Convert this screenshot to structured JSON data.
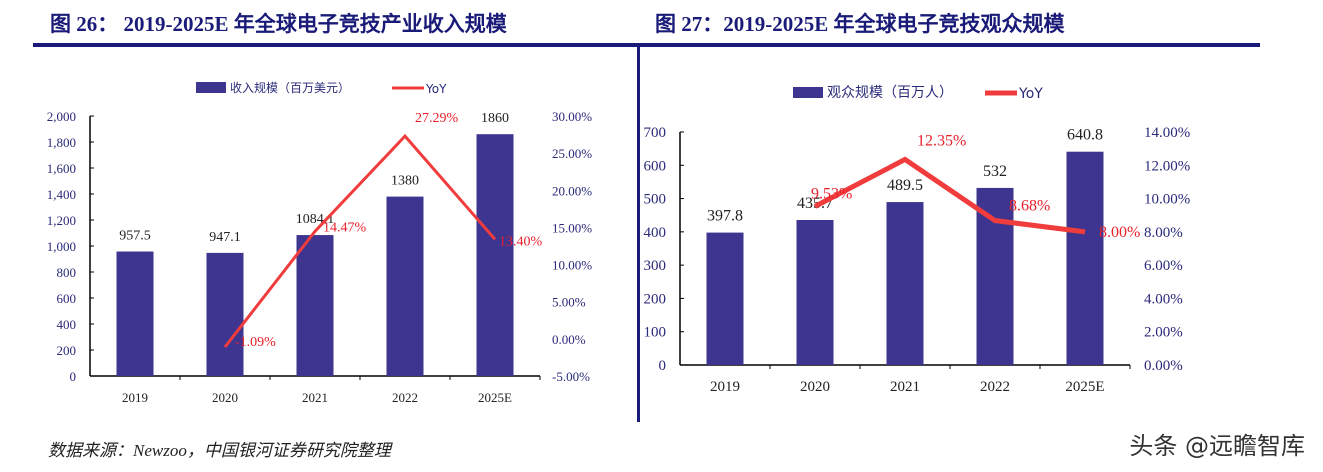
{
  "figures": [
    {
      "title": "图 26：  2019-2025E 年全球电子竞技产业收入规模"
    },
    {
      "title": "图 27：2019-2025E 年全球电子竞技观众规模"
    }
  ],
  "source": "数据来源：Newzoo，中国银河证券研究院整理",
  "watermark": "头条 @远瞻智库",
  "colors": {
    "bar": "#3e3590",
    "line": "#f03c3c",
    "axis_text": "#2a2a7a",
    "label_red": "#e8202a",
    "title": "#1a1a78"
  },
  "chart_data": [
    {
      "type": "bar+line",
      "categories": [
        "2019",
        "2020",
        "2021",
        "2022",
        "2025E"
      ],
      "series": [
        {
          "name": "收入规模（百万美元）",
          "type": "bar",
          "axis": "left",
          "values": [
            957.5,
            947.1,
            1084.1,
            1380,
            1860
          ],
          "labels": [
            "957.5",
            "947.1",
            "1084.1",
            "1380",
            "1860"
          ]
        },
        {
          "name": "YoY",
          "type": "line",
          "axis": "right",
          "values": [
            null,
            -1.09,
            14.47,
            27.29,
            13.4
          ],
          "labels": [
            "",
            "-1.09%",
            "14.47%",
            "27.29%",
            "13.40%"
          ]
        }
      ],
      "ylim_left": [
        0,
        2000
      ],
      "yticks_left": [
        "0",
        "200",
        "400",
        "600",
        "800",
        "1,000",
        "1,200",
        "1,400",
        "1,600",
        "1,800",
        "2,000"
      ],
      "ylim_right": [
        -5,
        30
      ],
      "yticks_right": [
        "-5.00%",
        "0.00%",
        "5.00%",
        "10.00%",
        "15.00%",
        "20.00%",
        "25.00%",
        "30.00%"
      ],
      "grid": false,
      "legend": "top"
    },
    {
      "type": "bar+line",
      "categories": [
        "2019",
        "2020",
        "2021",
        "2022",
        "2025E"
      ],
      "series": [
        {
          "name": "观众规模（百万人）",
          "type": "bar",
          "axis": "left",
          "values": [
            397.8,
            435.7,
            489.5,
            532,
            640.8
          ],
          "labels": [
            "397.8",
            "435.7",
            "489.5",
            "532",
            "640.8"
          ]
        },
        {
          "name": "YoY",
          "type": "line",
          "axis": "right",
          "values": [
            null,
            9.53,
            12.35,
            8.68,
            8.0
          ],
          "labels": [
            "",
            "9.53%",
            "12.35%",
            "8.68%",
            "8.00%"
          ]
        }
      ],
      "ylim_left": [
        0,
        700
      ],
      "yticks_left": [
        "0",
        "100",
        "200",
        "300",
        "400",
        "500",
        "600",
        "700"
      ],
      "ylim_right": [
        0,
        14
      ],
      "yticks_right": [
        "0.00%",
        "2.00%",
        "4.00%",
        "6.00%",
        "8.00%",
        "10.00%",
        "12.00%",
        "14.00%"
      ],
      "grid": false,
      "legend": "top"
    }
  ]
}
